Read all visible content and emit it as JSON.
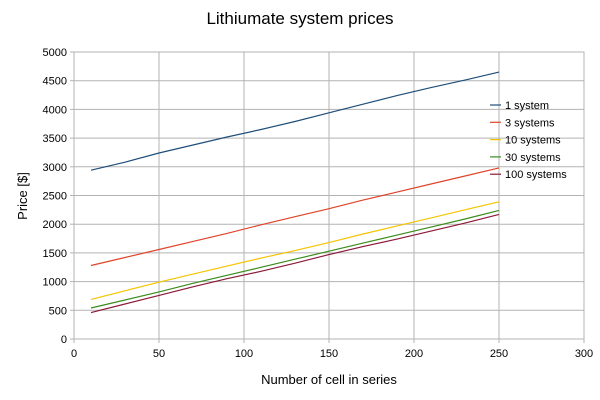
{
  "chart_data": {
    "type": "line",
    "title": "Lithiumate system prices",
    "xlabel": "Number of cell in series",
    "ylabel": "Price [$]",
    "xlim": [
      0,
      300
    ],
    "ylim": [
      0,
      5000
    ],
    "x_ticks": [
      "0",
      "50",
      "100",
      "150",
      "200",
      "250",
      "300"
    ],
    "y_ticks": [
      "0",
      "500",
      "1000",
      "1500",
      "2000",
      "2500",
      "3000",
      "3500",
      "4000",
      "4500",
      "5000"
    ],
    "grid": true,
    "legend_position": "right",
    "x": [
      10,
      30,
      50,
      70,
      90,
      110,
      130,
      150,
      170,
      190,
      210,
      230,
      250
    ],
    "series": [
      {
        "name": "1 system",
        "color": "#1f4e79",
        "values": [
          2940,
          3080,
          3240,
          3380,
          3520,
          3650,
          3790,
          3940,
          4090,
          4240,
          4380,
          4510,
          4650
        ]
      },
      {
        "name": "3 systems",
        "color": "#e0442a",
        "values": [
          1280,
          1420,
          1560,
          1700,
          1840,
          1990,
          2130,
          2270,
          2420,
          2560,
          2700,
          2840,
          2980
        ]
      },
      {
        "name": "10 systems",
        "color": "#f5c400",
        "values": [
          690,
          840,
          990,
          1130,
          1270,
          1410,
          1540,
          1680,
          1830,
          1970,
          2110,
          2250,
          2390
        ]
      },
      {
        "name": "30 systems",
        "color": "#3a8c1e",
        "values": [
          540,
          680,
          820,
          970,
          1110,
          1250,
          1390,
          1530,
          1670,
          1810,
          1950,
          2090,
          2240
        ]
      },
      {
        "name": "100 systems",
        "color": "#8b1a3a",
        "values": [
          460,
          610,
          760,
          910,
          1050,
          1180,
          1320,
          1470,
          1610,
          1740,
          1880,
          2020,
          2170
        ]
      }
    ]
  }
}
